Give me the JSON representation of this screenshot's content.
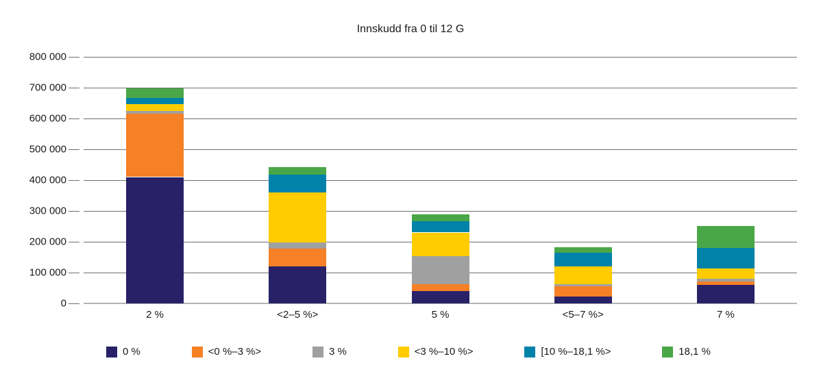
{
  "chart_data": {
    "type": "bar",
    "variant": "stacked-vertical",
    "title": "Innskudd fra 0 til 12 G",
    "categories": [
      "2 %",
      "<2–5 %>",
      "5 %",
      "<5–7 %>",
      "7 %"
    ],
    "series": [
      {
        "name": "0 %",
        "color": "#282168",
        "values": [
          410000,
          120000,
          40000,
          22000,
          60000
        ]
      },
      {
        "name": "<0 %–3 %>",
        "color": "#F58025",
        "values": [
          206000,
          58000,
          22000,
          34000,
          12000
        ]
      },
      {
        "name": "3 %",
        "color": "#A0A0A0",
        "values": [
          8000,
          20000,
          92000,
          7000,
          7000
        ]
      },
      {
        "name": "<3 %–10 %>",
        "color": "#FFCC00",
        "values": [
          22000,
          162000,
          76000,
          57000,
          34000
        ]
      },
      {
        "name": "[10 %–18,1 %>",
        "color": "#0082A9",
        "values": [
          20000,
          58000,
          37000,
          45000,
          66000
        ]
      },
      {
        "name": "18,1 %",
        "color": "#4AA747",
        "values": [
          31000,
          25000,
          21000,
          17000,
          73000
        ]
      }
    ],
    "totals": [
      697000,
      443000,
      288000,
      182000,
      252000
    ],
    "xlabel": "",
    "ylabel": "",
    "ylim": [
      0,
      800000
    ],
    "ytick_step": 100000,
    "ytick_labels": [
      "0",
      "100 000",
      "200 000",
      "300 000",
      "400 000",
      "500 000",
      "600 000",
      "700 000",
      "800 000"
    ],
    "grid": "horizontal",
    "legend_position": "bottom"
  },
  "colors": {
    "gridline": "#6e6e6e",
    "axis_baseline": "#b3b3b3",
    "text": "#1a1a1a",
    "background": "#ffffff"
  }
}
